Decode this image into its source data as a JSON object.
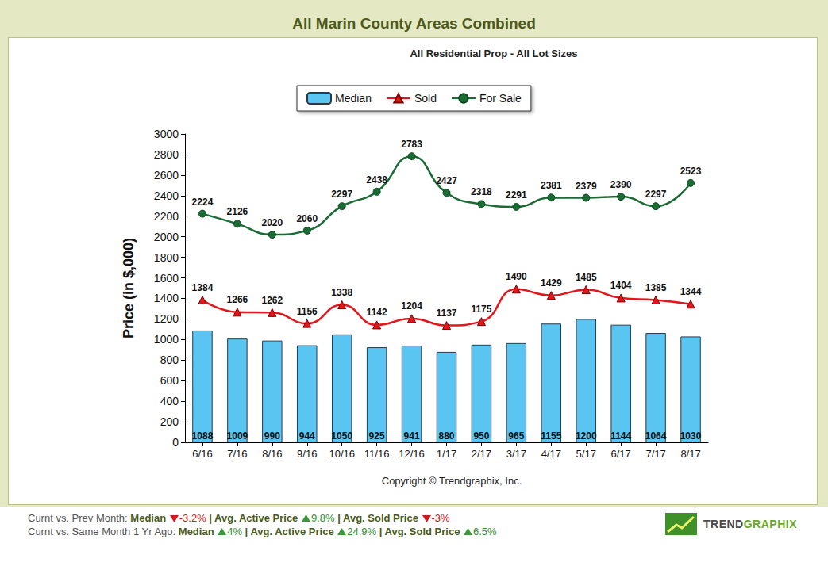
{
  "header": {
    "title": "All Marin County Areas Combined"
  },
  "chart_data": {
    "type": "bar",
    "title": "All Residential Prop - All Lot Sizes",
    "ylabel": "Price (in $,000)",
    "categories": [
      "6/16",
      "7/16",
      "8/16",
      "9/16",
      "10/16",
      "11/16",
      "12/16",
      "1/17",
      "2/17",
      "3/17",
      "4/17",
      "5/17",
      "6/17",
      "7/17",
      "8/17"
    ],
    "series": [
      {
        "name": "Median",
        "type": "bar",
        "color": "#5bc5f2",
        "values": [
          1088,
          1009,
          990,
          944,
          1050,
          925,
          941,
          880,
          950,
          965,
          1155,
          1200,
          1144,
          1064,
          1030
        ]
      },
      {
        "name": "Sold",
        "type": "line",
        "color": "#e3161c",
        "marker": "triangle",
        "line_style": "solid",
        "values": [
          1384,
          1266,
          1262,
          1156,
          1338,
          1142,
          1204,
          1137,
          1175,
          1490,
          1429,
          1485,
          1404,
          1385,
          1344
        ]
      },
      {
        "name": "For Sale",
        "type": "line",
        "color": "#1b6b35",
        "marker": "circle",
        "line_style": "solid",
        "values": [
          2224,
          2126,
          2020,
          2060,
          2297,
          2438,
          2783,
          2427,
          2318,
          2291,
          2381,
          2379,
          2390,
          2297,
          2523
        ]
      }
    ],
    "ylim": [
      0,
      3000
    ],
    "yticks": [
      0,
      200,
      400,
      600,
      800,
      1000,
      1200,
      1400,
      1600,
      1800,
      2000,
      2200,
      2400,
      2600,
      2800,
      3000
    ],
    "grid": false,
    "legend": "top",
    "data_labels": true,
    "annotations": [
      "Copyright © Trendgraphix, Inc."
    ]
  },
  "footer": {
    "separator": "|",
    "rows": [
      {
        "label": "Curnt vs. Prev Month:",
        "items": [
          {
            "name": "Median",
            "change": "-3.2%",
            "direction": "down"
          },
          {
            "name": "Avg. Active Price",
            "change": "9.8%",
            "direction": "up"
          },
          {
            "name": "Avg. Sold Price",
            "change": "-3%",
            "direction": "down"
          }
        ]
      },
      {
        "label": "Curnt vs. Same Month 1 Yr Ago:",
        "items": [
          {
            "name": "Median",
            "change": "4%",
            "direction": "up"
          },
          {
            "name": "Avg. Active Price",
            "change": "24.9%",
            "direction": "up"
          },
          {
            "name": "Avg. Sold Price",
            "change": "6.5%",
            "direction": "up"
          }
        ]
      }
    ]
  },
  "logo": {
    "text": [
      "TREND",
      "GRAPHIX"
    ]
  }
}
